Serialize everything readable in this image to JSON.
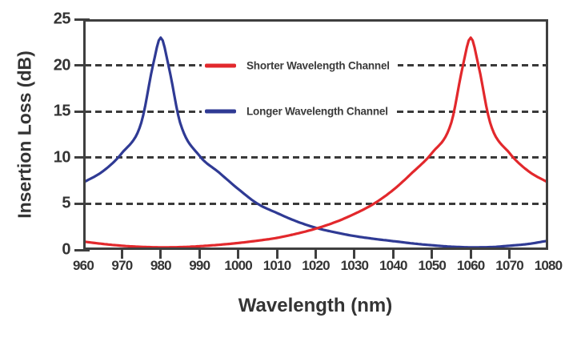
{
  "chart_data": {
    "type": "line",
    "title": "",
    "xlabel": "Wavelength (nm)",
    "ylabel": "Insertion Loss (dB)",
    "xlim": [
      960,
      1080
    ],
    "ylim": [
      0,
      25
    ],
    "x_ticks": [
      960,
      970,
      980,
      990,
      1000,
      1010,
      1020,
      1030,
      1040,
      1050,
      1060,
      1070,
      1080
    ],
    "y_ticks": [
      0,
      5,
      10,
      15,
      20,
      25
    ],
    "gridlines": {
      "y_values": [
        5,
        10,
        15,
        20
      ],
      "style": "dashed",
      "color": "#3a3a3a"
    },
    "legend_position": "inside-upper-middle",
    "axis_color": "#3f3f3f",
    "text_color": "#343434",
    "series": [
      {
        "name": "Shorter Wavelength Channel",
        "color": "#e2282c",
        "peak_nm": 1060,
        "peak_db": 23,
        "x": [
          960,
          965,
          970,
          975,
          980,
          985,
          990,
          995,
          1000,
          1005,
          1010,
          1015,
          1020,
          1025,
          1030,
          1035,
          1040,
          1045,
          1050,
          1055,
          1058,
          1060,
          1062,
          1065,
          1070,
          1075,
          1080
        ],
        "values": [
          0.9,
          0.65,
          0.45,
          0.33,
          0.28,
          0.3,
          0.4,
          0.55,
          0.75,
          1.0,
          1.3,
          1.75,
          2.3,
          3.0,
          3.9,
          5.0,
          6.5,
          8.4,
          10.5,
          13.8,
          20.0,
          23.0,
          20.0,
          13.8,
          10.5,
          8.5,
          7.3
        ]
      },
      {
        "name": "Longer Wavelength Channel",
        "color": "#2f3a94",
        "peak_nm": 980,
        "peak_db": 23,
        "x": [
          960,
          965,
          970,
          975,
          978,
          980,
          982,
          985,
          990,
          995,
          1000,
          1005,
          1010,
          1015,
          1020,
          1025,
          1030,
          1035,
          1040,
          1045,
          1050,
          1055,
          1060,
          1065,
          1070,
          1075,
          1080
        ],
        "values": [
          7.3,
          8.5,
          10.5,
          13.8,
          20.0,
          23.0,
          20.0,
          13.8,
          10.2,
          8.4,
          6.6,
          5.0,
          4.0,
          3.1,
          2.4,
          1.9,
          1.5,
          1.2,
          0.95,
          0.7,
          0.5,
          0.35,
          0.28,
          0.3,
          0.45,
          0.65,
          1.0
        ]
      }
    ]
  }
}
